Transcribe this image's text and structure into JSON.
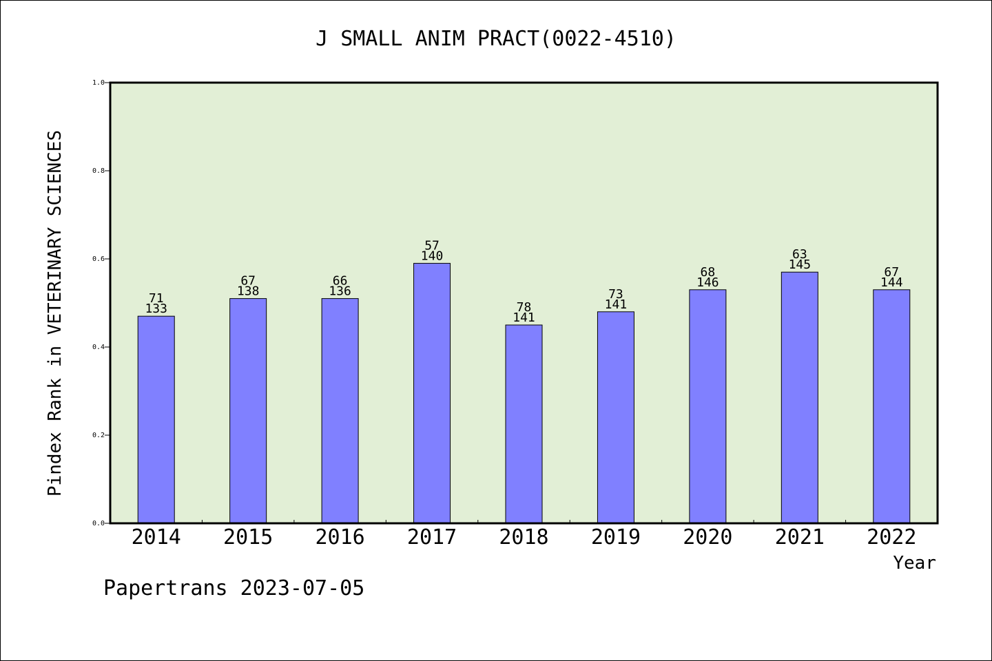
{
  "chart_data": {
    "type": "bar",
    "title": "J SMALL ANIM PRACT(0022-4510)",
    "xlabel": "Year",
    "ylabel": "Pindex Rank in VETERINARY SCIENCES",
    "footer": "Papertrans 2023-07-05",
    "categories": [
      "2014",
      "2015",
      "2016",
      "2017",
      "2018",
      "2019",
      "2020",
      "2021",
      "2022"
    ],
    "values": [
      0.47,
      0.51,
      0.51,
      0.59,
      0.45,
      0.48,
      0.53,
      0.57,
      0.53
    ],
    "label_top": [
      "71",
      "67",
      "66",
      "57",
      "78",
      "73",
      "68",
      "63",
      "67"
    ],
    "label_bottom": [
      "133",
      "138",
      "136",
      "140",
      "141",
      "141",
      "146",
      "145",
      "144"
    ],
    "ylim": [
      0,
      1.0
    ],
    "yticks": [
      "0.0",
      "0.2",
      "0.4",
      "0.6",
      "0.8",
      "1.0"
    ],
    "grid": false,
    "colors": {
      "plot_background": "#e2efd6",
      "bar_fill": "#8080ff",
      "bar_stroke": "#000000"
    }
  }
}
